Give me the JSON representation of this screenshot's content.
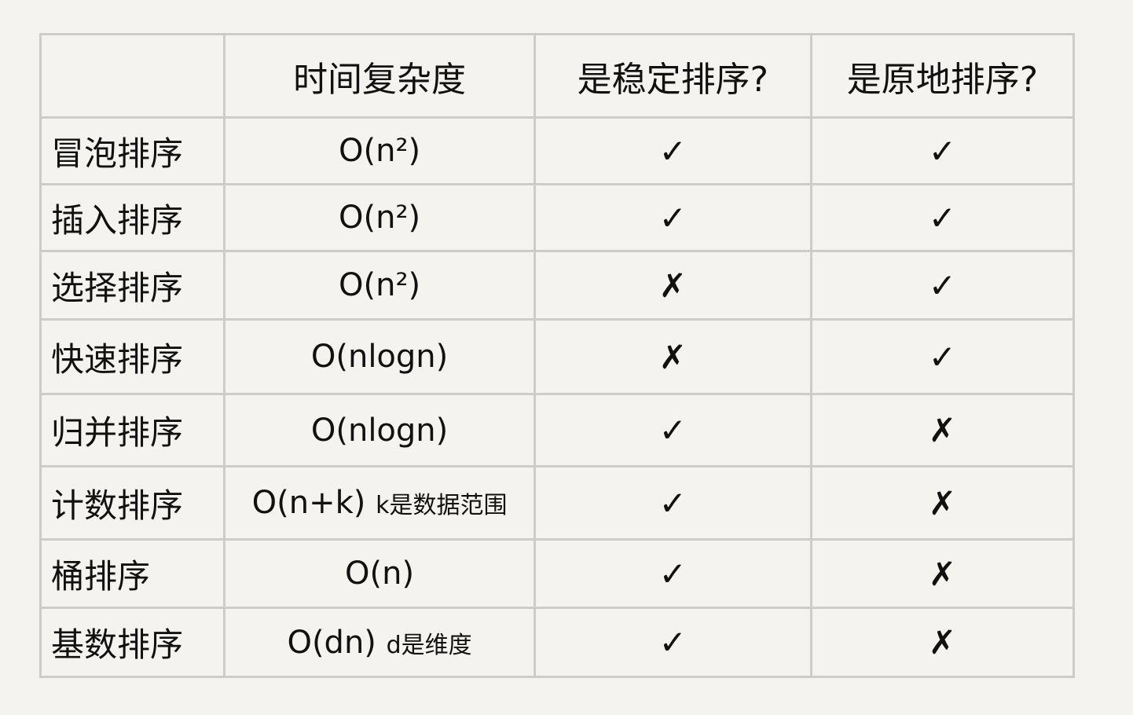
{
  "headers": [
    "",
    "时间复杂度",
    "是稳定排序?",
    "是原地排序?"
  ],
  "rows": [
    {
      "name": "冒泡排序",
      "time": "O(n²)",
      "note": "",
      "stable": "✓",
      "in_place": "✓"
    },
    {
      "name": "插入排序",
      "time": "O(n²)",
      "note": "",
      "stable": "✓",
      "in_place": "✓"
    },
    {
      "name": "选择排序",
      "time": "O(n²)",
      "note": "",
      "stable": "✗",
      "in_place": "✓"
    },
    {
      "name": "快速排序",
      "time": "O(nlogn)",
      "note": "",
      "stable": "✗",
      "in_place": "✓"
    },
    {
      "name": "归并排序",
      "time": "O(nlogn)",
      "note": "",
      "stable": "✓",
      "in_place": "✗"
    },
    {
      "name": "计数排序",
      "time": "O(n+k)",
      "note": "k是数据范围",
      "stable": "✓",
      "in_place": "✗"
    },
    {
      "name": "桶排序",
      "time": "O(n)",
      "note": "",
      "stable": "✓",
      "in_place": "✗"
    },
    {
      "name": "基数排序",
      "time": "O(dn)",
      "note": "d是维度",
      "stable": "✓",
      "in_place": "✗"
    }
  ],
  "row_heights": [
    85,
    85,
    87,
    95,
    92,
    93,
    87,
    88
  ]
}
